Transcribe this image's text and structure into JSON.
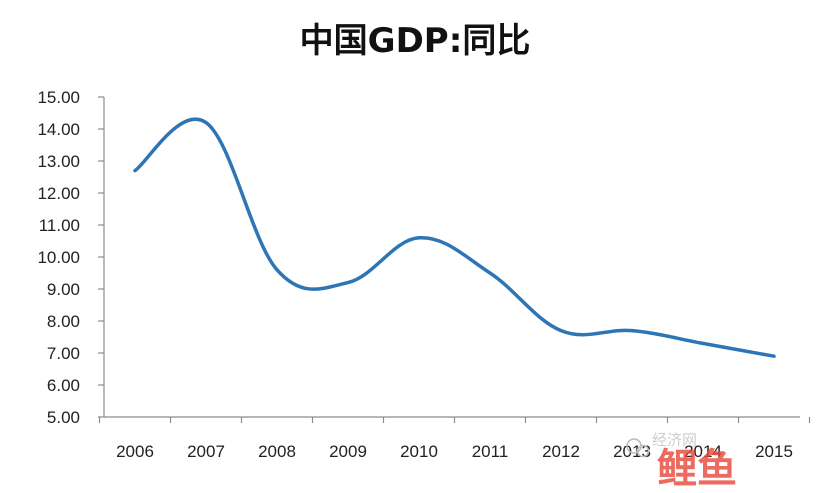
{
  "chart_data": {
    "type": "line",
    "title": "中国GDP:同比",
    "xlabel": "",
    "ylabel": "",
    "categories": [
      "2006",
      "2007",
      "2008",
      "2009",
      "2010",
      "2011",
      "2012",
      "2013",
      "2014",
      "2015"
    ],
    "x_tick_labels": [
      "2006",
      "2007",
      "2008",
      "2009",
      "2010",
      "2011",
      "2012",
      "2013",
      "2014",
      "2015"
    ],
    "ylim": [
      5.0,
      15.0
    ],
    "y_tick_labels": [
      "15.00",
      "14.00",
      "13.00",
      "12.00",
      "11.00",
      "10.00",
      "9.00",
      "8.00",
      "7.00",
      "6.00",
      "5.00"
    ],
    "series": [
      {
        "values": [
          12.7,
          14.2,
          9.6,
          9.2,
          10.6,
          9.5,
          7.7,
          7.7,
          7.3,
          6.9
        ]
      }
    ],
    "line_color": "#2e75b6",
    "grid": false,
    "legend": "none"
  },
  "watermark": {
    "text": "经济网",
    "brand": "鲤鱼"
  },
  "colors": {
    "axis": "#8c8c8c",
    "text": "#222222",
    "brand": "#e84a3c"
  }
}
